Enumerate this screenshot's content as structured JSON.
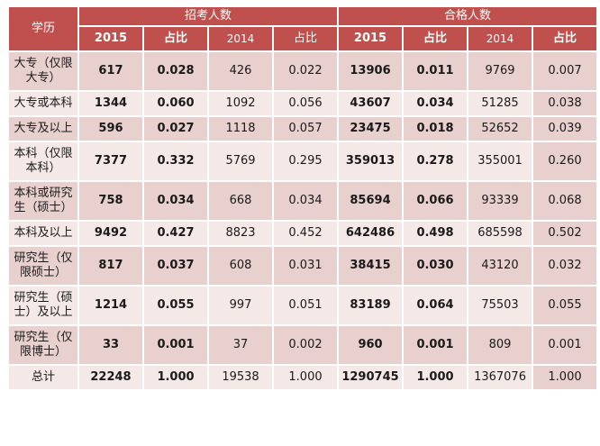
{
  "colors": {
    "header_bg": "#c0504d",
    "row_dark": "#e7d0ce",
    "row_light": "#f5e9e7",
    "border": "#ffffff",
    "header_text": "#ffffff",
    "body_text": "#1a1a1a"
  },
  "chart_data": {
    "type": "table",
    "corner": "学历",
    "col_groups": [
      "招考人数",
      "合格人数"
    ],
    "columns": [
      "2015",
      "占比",
      "2014",
      "占比",
      "2015",
      "占比",
      "2014",
      "占比"
    ],
    "rows": [
      {
        "label": "大专（仅限大专）",
        "values": [
          "617",
          "0.028",
          "426",
          "0.022",
          "13906",
          "0.011",
          "9769",
          "0.007"
        ]
      },
      {
        "label": "大专或本科",
        "values": [
          "1344",
          "0.060",
          "1092",
          "0.056",
          "43607",
          "0.034",
          "51285",
          "0.038"
        ]
      },
      {
        "label": "大专及以上",
        "values": [
          "596",
          "0.027",
          "1118",
          "0.057",
          "23475",
          "0.018",
          "52652",
          "0.039"
        ]
      },
      {
        "label": "本科（仅限本科）",
        "values": [
          "7377",
          "0.332",
          "5769",
          "0.295",
          "359013",
          "0.278",
          "355001",
          "0.260"
        ]
      },
      {
        "label": "本科或研究生（硕士）",
        "values": [
          "758",
          "0.034",
          "668",
          "0.034",
          "85694",
          "0.066",
          "93339",
          "0.068"
        ]
      },
      {
        "label": "本科及以上",
        "values": [
          "9492",
          "0.427",
          "8823",
          "0.452",
          "642486",
          "0.498",
          "685598",
          "0.502"
        ]
      },
      {
        "label": "研究生（仅限硕士）",
        "values": [
          "817",
          "0.037",
          "608",
          "0.031",
          "38415",
          "0.030",
          "43120",
          "0.032"
        ]
      },
      {
        "label": "研究生（硕士）及以上",
        "values": [
          "1214",
          "0.055",
          "997",
          "0.051",
          "83189",
          "0.064",
          "75503",
          "0.055"
        ]
      },
      {
        "label": "研究生（仅限博士）",
        "values": [
          "33",
          "0.001",
          "37",
          "0.002",
          "960",
          "0.001",
          "809",
          "0.001"
        ]
      },
      {
        "label": "总计",
        "values": [
          "22248",
          "1.000",
          "19538",
          "1.000",
          "1290745",
          "1.000",
          "1367076",
          "1.000"
        ]
      }
    ]
  }
}
